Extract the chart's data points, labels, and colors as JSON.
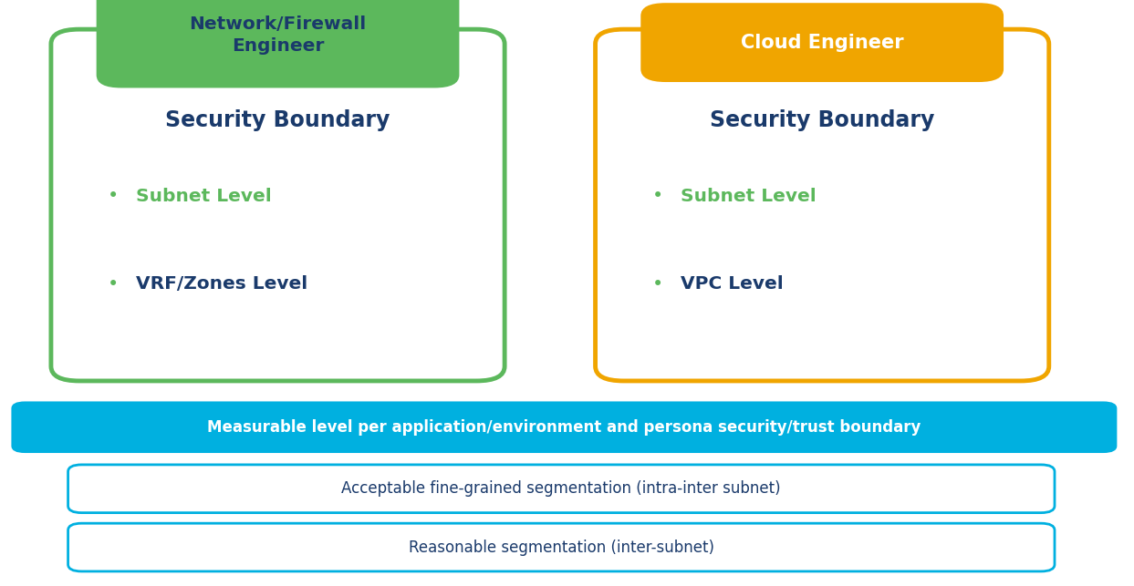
{
  "bg_color": "#ffffff",
  "green_header_color": "#5cb85c",
  "orange_header_color": "#f0a500",
  "green_border_color": "#5cb85c",
  "orange_border_color": "#f0a500",
  "cyan_bar_color": "#00b0e0",
  "light_blue_border_color": "#00b0e0",
  "dark_navy_color": "#1a3a6b",
  "green_bullet_color": "#5cb85c",
  "white_color": "#ffffff",
  "left_box": {
    "header": "Network/Firewall\nEngineer",
    "header_text_color": "#1a3a6b",
    "title": "Security Boundary",
    "bullets": [
      "Subnet Level",
      "VRF/Zones Level"
    ],
    "bullet_colors": [
      "#5cb85c",
      "#1a3a6b"
    ]
  },
  "right_box": {
    "header": "Cloud Engineer",
    "header_text_color": "#ffffff",
    "title": "Security Boundary",
    "bullets": [
      "Subnet Level",
      "VPC Level"
    ],
    "bullet_colors": [
      "#5cb85c",
      "#1a3a6b"
    ]
  },
  "cyan_bar_text": "Measurable level per application/environment and persona security/trust boundary",
  "bottom_boxes": [
    "Acceptable fine-grained segmentation (intra-inter subnet)",
    "Reasonable segmentation (inter-subnet)"
  ]
}
